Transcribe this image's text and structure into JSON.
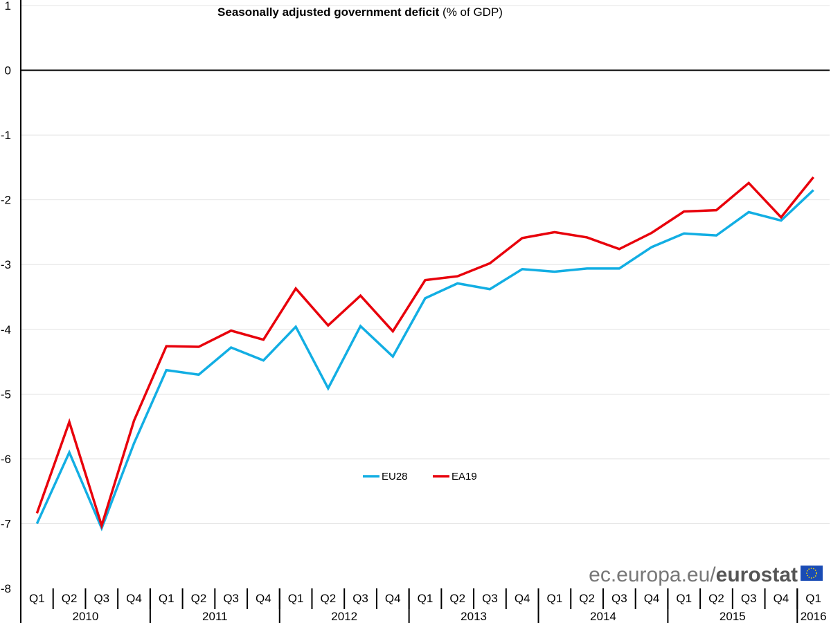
{
  "chart_data": {
    "type": "line",
    "title": "Seasonally adjusted government deficit",
    "subtitle": "(% of GDP)",
    "xlabel": "",
    "ylabel": "",
    "ylim": [
      -8,
      1
    ],
    "yticks": [
      1,
      0,
      -1,
      -2,
      -3,
      -4,
      -5,
      -6,
      -7,
      -8
    ],
    "grid": true,
    "legend_position": "center",
    "years": [
      {
        "label": "2010",
        "quarters": 4
      },
      {
        "label": "2011",
        "quarters": 4
      },
      {
        "label": "2012",
        "quarters": 4
      },
      {
        "label": "2013",
        "quarters": 4
      },
      {
        "label": "2014",
        "quarters": 4
      },
      {
        "label": "2015",
        "quarters": 4
      },
      {
        "label": "2016",
        "quarters": 1
      }
    ],
    "categories": [
      "Q1",
      "Q2",
      "Q3",
      "Q4",
      "Q1",
      "Q2",
      "Q3",
      "Q4",
      "Q1",
      "Q2",
      "Q3",
      "Q4",
      "Q1",
      "Q2",
      "Q3",
      "Q4",
      "Q1",
      "Q2",
      "Q3",
      "Q4",
      "Q1",
      "Q2",
      "Q3",
      "Q4",
      "Q1"
    ],
    "series": [
      {
        "name": "EU28",
        "color": "#12aee3",
        "values": [
          -7.0,
          -5.9,
          -7.07,
          -5.76,
          -4.63,
          -4.7,
          -4.28,
          -4.48,
          -3.96,
          -4.91,
          -3.95,
          -4.42,
          -3.52,
          -3.29,
          -3.38,
          -3.07,
          -3.11,
          -3.06,
          -3.06,
          -2.73,
          -2.52,
          -2.55,
          -2.19,
          -2.32,
          -1.85
        ]
      },
      {
        "name": "EA19",
        "color": "#e8000b",
        "values": [
          -6.84,
          -5.43,
          -7.03,
          -5.41,
          -4.26,
          -4.27,
          -4.02,
          -4.16,
          -3.37,
          -3.94,
          -3.48,
          -4.03,
          -3.24,
          -3.18,
          -2.98,
          -2.59,
          -2.5,
          -2.58,
          -2.76,
          -2.51,
          -2.18,
          -2.16,
          -1.74,
          -2.27,
          -1.65
        ]
      }
    ]
  },
  "watermark": {
    "prefix": "ec.europa.eu/",
    "brand": "eurostat"
  }
}
